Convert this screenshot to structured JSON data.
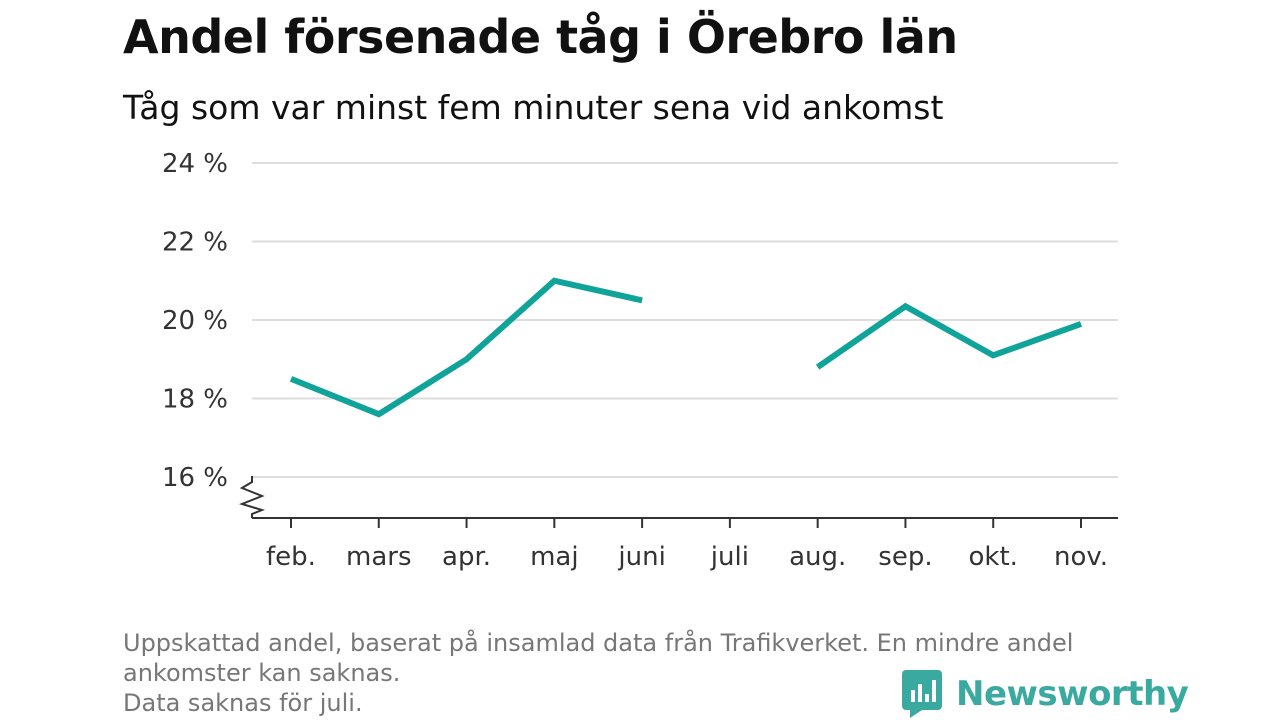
{
  "title": "Andel försenade tåg i Örebro län",
  "subtitle": "Tåg som var minst fem minuter sena vid ankomst",
  "footer": {
    "line1": "Uppskattad andel, baserat på insamlad data från Trafikverket. En mindre andel",
    "line2": "ankomster kan saknas.",
    "line3": "Data saknas för juli."
  },
  "brand": {
    "name": "Newsworthy",
    "color": "#3aa99f"
  },
  "colors": {
    "line": "#10a39a",
    "grid": "#dddddd",
    "axis": "#333333"
  },
  "chart_data": {
    "type": "line",
    "categories": [
      "feb.",
      "mars",
      "apr.",
      "maj",
      "juni",
      "juli",
      "aug.",
      "sep.",
      "okt.",
      "nov."
    ],
    "values": [
      18.5,
      17.6,
      19.0,
      21.0,
      20.5,
      null,
      18.8,
      20.35,
      19.1,
      19.9
    ],
    "y_ticks": [
      16,
      18,
      20,
      22,
      24
    ],
    "y_tick_labels": [
      "16 %",
      "18 %",
      "20 %",
      "22 %",
      "24 %"
    ],
    "ylim": [
      15,
      24
    ],
    "y_axis_break": true,
    "grid": true
  }
}
